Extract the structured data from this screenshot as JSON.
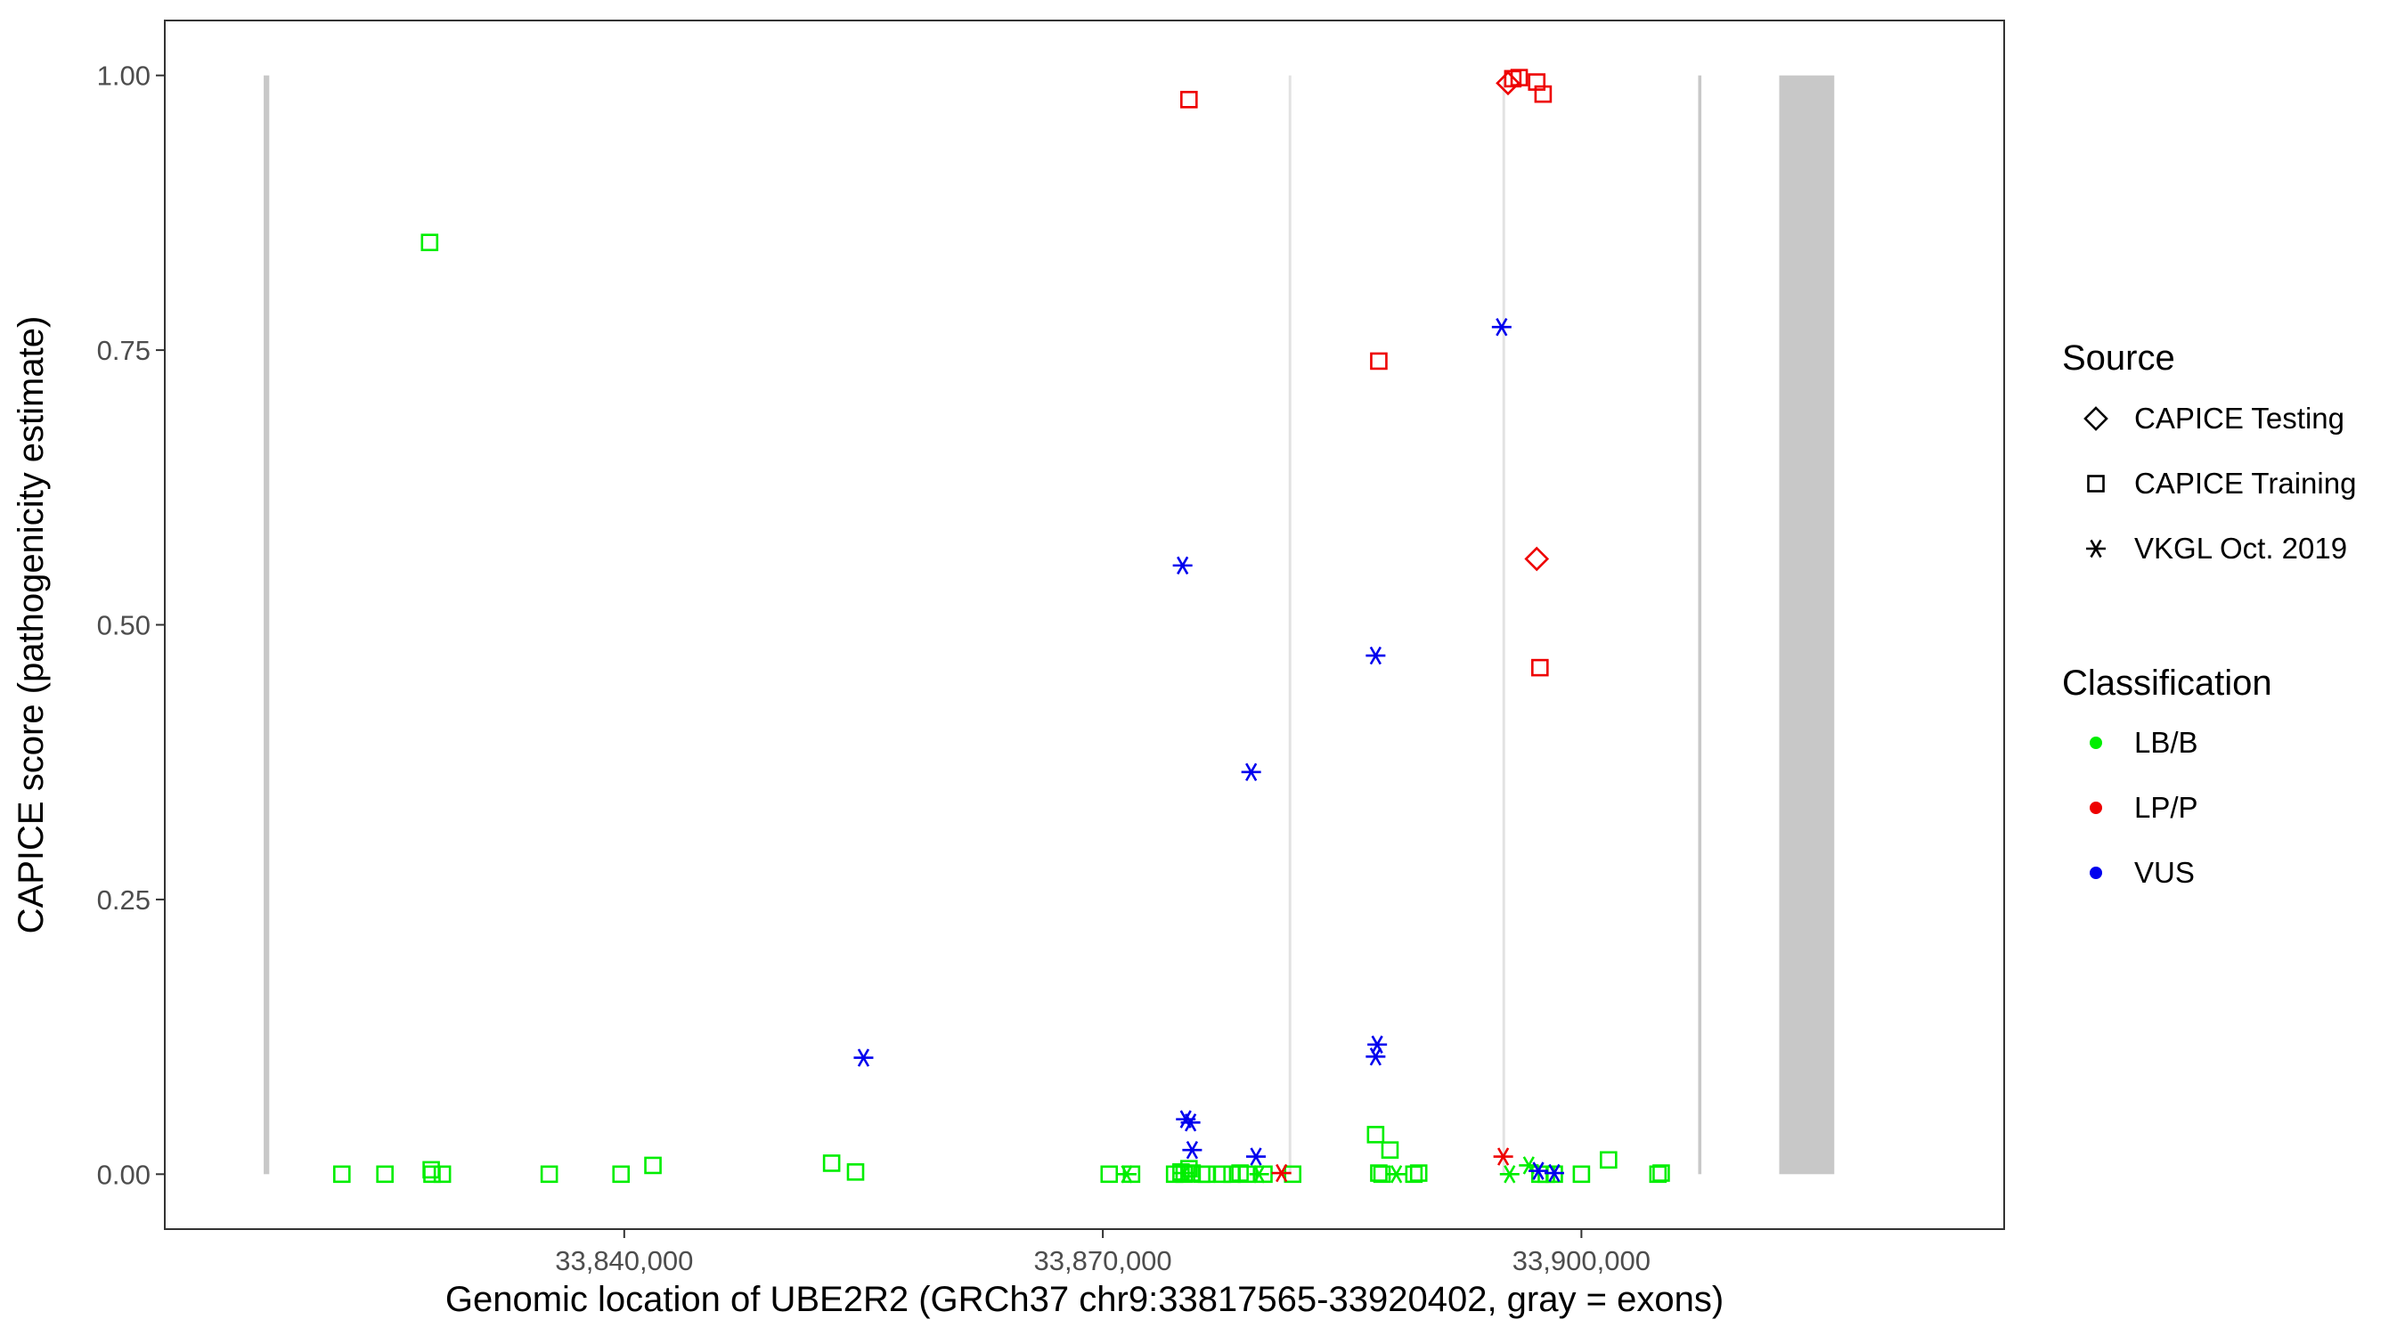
{
  "chart_data": {
    "type": "scatter",
    "xlabel": "Genomic location of UBE2R2 (GRCh37 chr9:33817565-33920402, gray = exons)",
    "ylabel": "CAPICE score (pathogenicity estimate)",
    "xlim": [
      33811200,
      33926500
    ],
    "ylim": [
      -0.05,
      1.05
    ],
    "grid": false,
    "x_ticks": [
      33840000,
      33870000,
      33900000
    ],
    "x_tick_labels": [
      "33,840,000",
      "33,870,000",
      "33,900,000"
    ],
    "y_ticks": [
      0.0,
      0.25,
      0.5,
      0.75,
      1.0
    ],
    "y_tick_labels": [
      "0.00",
      "0.25",
      "0.50",
      "0.75",
      "1.00"
    ],
    "exons": [
      {
        "start": 33817400,
        "end": 33817750,
        "color": "#c8c8c8"
      },
      {
        "start": 33881650,
        "end": 33881780,
        "color": "#e2e2e2"
      },
      {
        "start": 33895050,
        "end": 33895180,
        "color": "#e2e2e2"
      },
      {
        "start": 33907320,
        "end": 33907520,
        "color": "#c8c8c8"
      },
      {
        "start": 33912400,
        "end": 33915850,
        "color": "#c8c8c8"
      }
    ],
    "legend": {
      "position": "right",
      "source_title": "Source",
      "source_entries": [
        {
          "label": "CAPICE Testing",
          "shape": "diamond"
        },
        {
          "label": "CAPICE Training",
          "shape": "square"
        },
        {
          "label": "VKGL Oct. 2019",
          "shape": "asterisk"
        }
      ],
      "class_title": "Classification",
      "class_entries": [
        {
          "label": "LB/B",
          "color": "#00ee00"
        },
        {
          "label": "LP/P",
          "color": "#ee0000"
        },
        {
          "label": "VUS",
          "color": "#0000ee"
        }
      ]
    },
    "colors": {
      "LB/B": "#00ee00",
      "LP/P": "#ee0000",
      "VUS": "#0000ee"
    },
    "series": [
      {
        "shape": "square",
        "cls": "LB/B",
        "x": [
          33822300,
          33825000,
          33827800,
          33827900,
          33827950,
          33828600,
          33835300,
          33839800,
          33841800,
          33853000,
          33854500,
          33870400,
          33871800,
          33874500,
          33874900,
          33875100,
          33875400,
          33875600,
          33876200,
          33876500,
          33877500,
          33878100,
          33878600,
          33879000,
          33880100,
          33881900,
          33887100,
          33887300,
          33887500,
          33888000,
          33889500,
          33889800,
          33897400,
          33897800,
          33898300,
          33900000,
          33901700,
          33904800,
          33905000
        ],
        "y": [
          0.0,
          0.0,
          0.848,
          0.004,
          0.0,
          0.0,
          0.0,
          0.0,
          0.008,
          0.01,
          0.002,
          0.0,
          0.0,
          0.0,
          0.002,
          0.0,
          0.005,
          0.001,
          0.0,
          0.0,
          0.0,
          0.0,
          0.001,
          0.0,
          0.0,
          0.0,
          0.036,
          0.001,
          0.0,
          0.022,
          0.0,
          0.001,
          0.0,
          0.0,
          0.0,
          0.0,
          0.013,
          0.0,
          0.001
        ]
      },
      {
        "shape": "square",
        "cls": "LP/P",
        "x": [
          33875400,
          33887300,
          33896100,
          33897200,
          33897600
        ],
        "y": [
          0.978,
          0.74,
          0.998,
          0.994,
          0.983
        ]
      },
      {
        "shape": "square",
        "cls": "LP/P",
        "x": [
          33895700,
          33897400
        ],
        "y": [
          0.997,
          0.461
        ]
      },
      {
        "shape": "diamond",
        "cls": "LP/P",
        "x": [
          33895400,
          33897200
        ],
        "y": [
          0.993,
          0.56
        ]
      },
      {
        "shape": "asterisk",
        "cls": "LB/B",
        "x": [
          33871500,
          33875100,
          33879800,
          33888400,
          33895500,
          33896700
        ],
        "y": [
          0.0,
          0.001,
          0.0,
          0.0,
          0.0,
          0.008
        ]
      },
      {
        "shape": "asterisk",
        "cls": "LP/P",
        "x": [
          33881200,
          33895100
        ],
        "y": [
          0.001,
          0.016
        ]
      },
      {
        "shape": "asterisk",
        "cls": "VUS",
        "x": [
          33855000,
          33875000,
          33875200,
          33875500,
          33875600,
          33879300,
          33879600,
          33887100,
          33887200,
          33895000,
          33897300,
          33898300
        ],
        "y": [
          0.106,
          0.554,
          0.05,
          0.047,
          0.022,
          0.366,
          0.016,
          0.472,
          0.118,
          0.771,
          0.003,
          0.001
        ]
      },
      {
        "shape": "asterisk",
        "cls": "VUS",
        "x": [
          33887100
        ],
        "y": [
          0.107
        ]
      }
    ]
  }
}
